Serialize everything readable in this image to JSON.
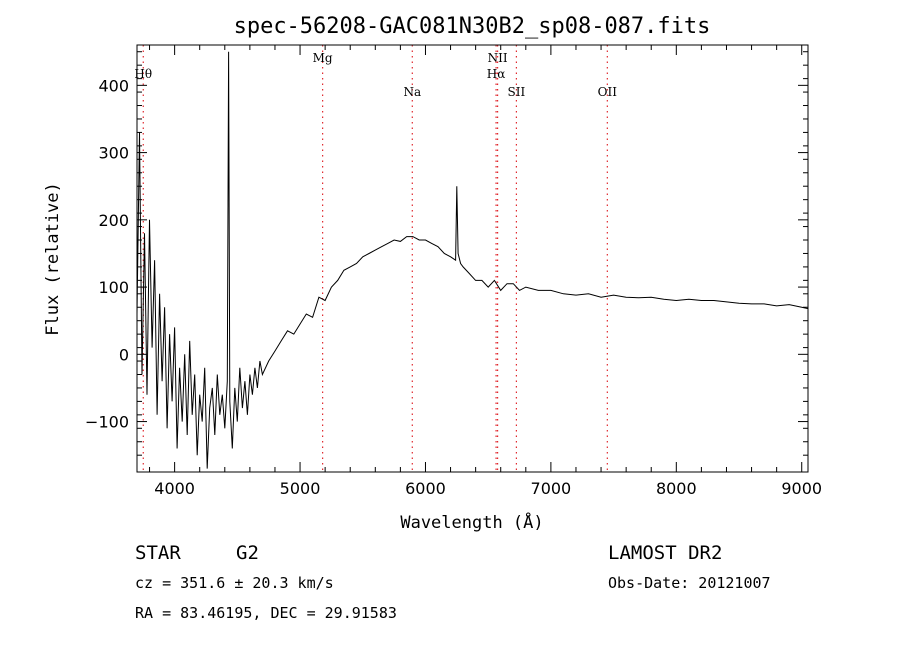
{
  "chart_data": {
    "type": "line",
    "title": "spec-56208-GAC081N30B2_sp08-087.fits",
    "xlabel": "Wavelength (Å)",
    "ylabel": "Flux (relative)",
    "xlim": [
      3700,
      9050
    ],
    "ylim": [
      -175,
      460
    ],
    "grid": false,
    "x_ticks": [
      4000,
      5000,
      6000,
      7000,
      8000,
      9000
    ],
    "y_ticks": [
      -100,
      0,
      100,
      200,
      300,
      400
    ],
    "series": [
      {
        "color": "#000000",
        "x": [
          3700,
          3720,
          3740,
          3760,
          3780,
          3800,
          3820,
          3840,
          3860,
          3880,
          3900,
          3920,
          3940,
          3960,
          3980,
          4000,
          4020,
          4040,
          4060,
          4080,
          4100,
          4120,
          4140,
          4160,
          4180,
          4200,
          4220,
          4240,
          4260,
          4280,
          4300,
          4320,
          4340,
          4360,
          4380,
          4400,
          4420,
          4430,
          4440,
          4460,
          4480,
          4500,
          4520,
          4540,
          4560,
          4580,
          4600,
          4620,
          4640,
          4660,
          4680,
          4700,
          4750,
          4800,
          4850,
          4900,
          4950,
          5000,
          5050,
          5100,
          5150,
          5200,
          5250,
          5300,
          5350,
          5400,
          5450,
          5500,
          5550,
          5600,
          5650,
          5700,
          5750,
          5800,
          5850,
          5900,
          5950,
          6000,
          6050,
          6100,
          6150,
          6200,
          6240,
          6250,
          6260,
          6280,
          6300,
          6350,
          6400,
          6450,
          6500,
          6550,
          6600,
          6650,
          6700,
          6750,
          6800,
          6900,
          7000,
          7100,
          7200,
          7300,
          7400,
          7500,
          7600,
          7700,
          7800,
          7900,
          8000,
          8100,
          8200,
          8300,
          8400,
          8500,
          8600,
          8700,
          8800,
          8900,
          9000,
          9050
        ],
        "y": [
          60,
          330,
          -30,
          180,
          -60,
          200,
          10,
          140,
          -90,
          90,
          -40,
          70,
          -110,
          30,
          -70,
          40,
          -140,
          -20,
          -100,
          0,
          -120,
          20,
          -90,
          -30,
          -150,
          -60,
          -100,
          -20,
          -170,
          -80,
          -50,
          -120,
          -30,
          -90,
          -60,
          -110,
          -40,
          450,
          -70,
          -140,
          -50,
          -100,
          -20,
          -80,
          -40,
          -90,
          -30,
          -60,
          -20,
          -50,
          -10,
          -30,
          -10,
          5,
          20,
          35,
          30,
          45,
          60,
          55,
          85,
          80,
          100,
          110,
          125,
          130,
          135,
          145,
          150,
          155,
          160,
          165,
          170,
          168,
          175,
          175,
          170,
          170,
          165,
          160,
          150,
          145,
          140,
          250,
          150,
          135,
          130,
          120,
          110,
          110,
          100,
          110,
          95,
          105,
          105,
          95,
          100,
          95,
          95,
          90,
          88,
          90,
          85,
          88,
          85,
          84,
          85,
          82,
          80,
          82,
          80,
          80,
          78,
          76,
          75,
          75,
          72,
          74,
          70,
          68
        ]
      }
    ],
    "lines": [
      {
        "label": "Hθ",
        "x": 3750,
        "row": 1
      },
      {
        "label": "Mg",
        "x": 5180,
        "row": 0
      },
      {
        "label": "Na",
        "x": 5895,
        "row": 2
      },
      {
        "label": "NII",
        "x": 6575,
        "row": 0
      },
      {
        "label": "Hα",
        "x": 6563,
        "row": 1
      },
      {
        "label": "SII",
        "x": 6725,
        "row": 2
      },
      {
        "label": "OII",
        "x": 7450,
        "row": 2
      }
    ]
  },
  "info": {
    "class": "STAR",
    "subclass": "G2",
    "cz": "cz = 351.6 ± 20.3 km/s",
    "coords": "RA =  83.46195, DEC =  29.91583",
    "survey": "LAMOST DR2",
    "obs_date": "Obs-Date: 20121007"
  }
}
